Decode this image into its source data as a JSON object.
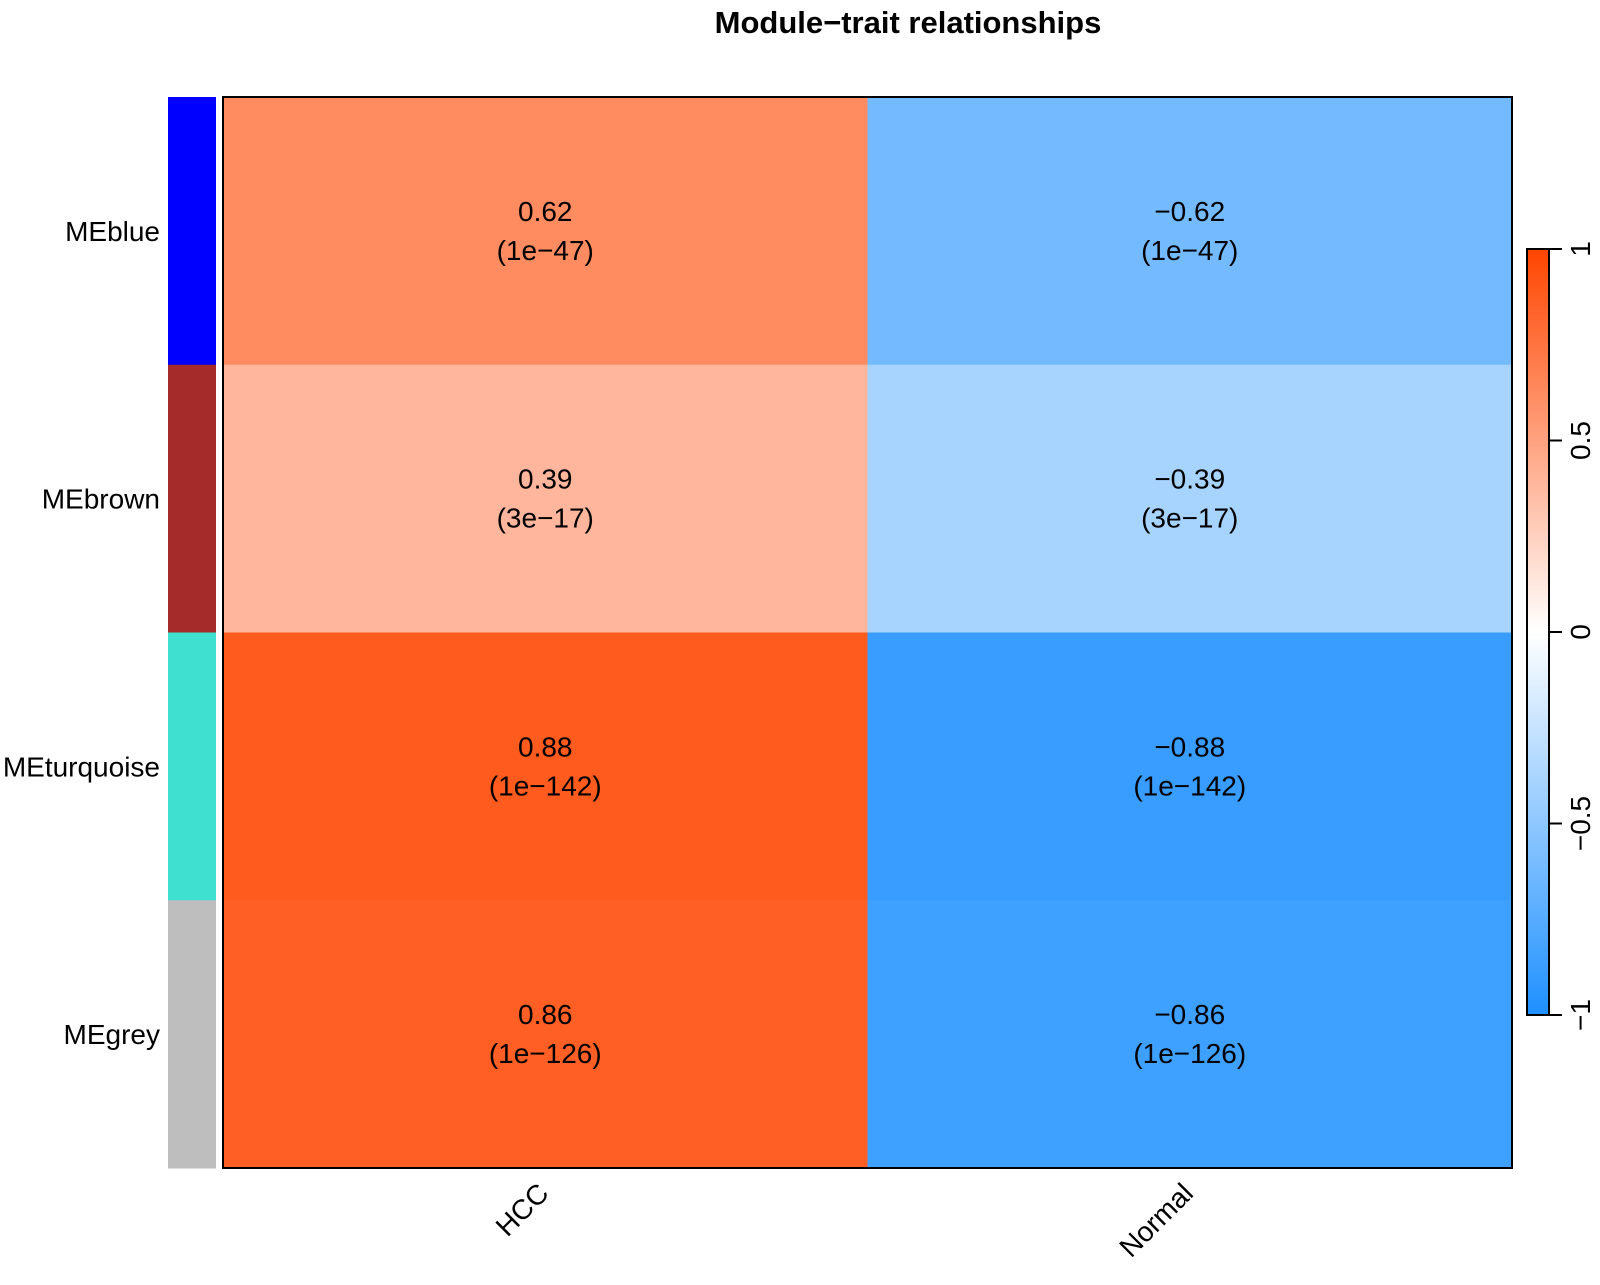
{
  "chart_data": {
    "type": "heatmap",
    "title": "Module−trait relationships",
    "rows": [
      "MEblue",
      "MEbrown",
      "MEturquoise",
      "MEgrey"
    ],
    "row_colors": [
      "#0000FF",
      "#A52A2A",
      "#40E0D0",
      "#BEBEBE"
    ],
    "columns": [
      "HCC",
      "Normal"
    ],
    "values": [
      [
        0.62,
        -0.62
      ],
      [
        0.39,
        -0.39
      ],
      [
        0.88,
        -0.88
      ],
      [
        0.86,
        -0.86
      ]
    ],
    "labels": [
      [
        [
          "0.62",
          "(1e−47)"
        ],
        [
          "−0.62",
          "(1e−47)"
        ]
      ],
      [
        [
          "0.39",
          "(3e−17)"
        ],
        [
          "−0.39",
          "(3e−17)"
        ]
      ],
      [
        [
          "0.88",
          "(1e−142)"
        ],
        [
          "−0.88",
          "(1e−142)"
        ]
      ],
      [
        [
          "0.86",
          "(1e−126)"
        ],
        [
          "−0.86",
          "(1e−126)"
        ]
      ]
    ],
    "color_scale": {
      "min": -1,
      "max": 1,
      "low": "#1E90FF",
      "mid": "#FFFFFF",
      "high": "#FF4500"
    },
    "legend_ticks": [
      {
        "value": 1,
        "label": "1"
      },
      {
        "value": 0.5,
        "label": "0.5"
      },
      {
        "value": 0,
        "label": "0"
      },
      {
        "value": -0.5,
        "label": "−0.5"
      },
      {
        "value": -1,
        "label": "−1"
      }
    ],
    "legend_placement": "right"
  }
}
